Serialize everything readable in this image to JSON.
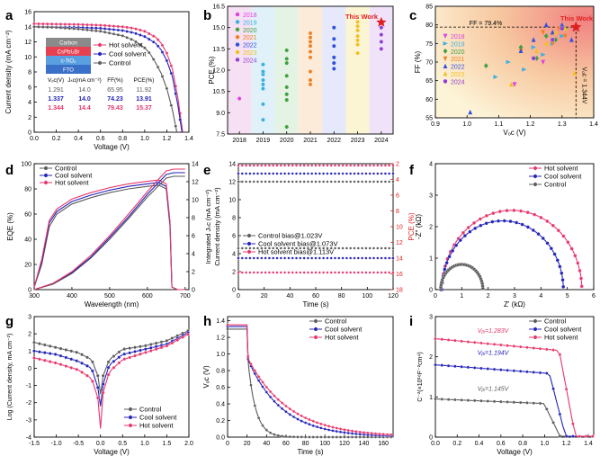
{
  "panels": {
    "a": {
      "letter": "a",
      "xlabel": "Voltage (V)",
      "ylabel": "Current density (mA cm⁻²)",
      "xticks": [
        "0.0",
        "0.2",
        "0.4",
        "0.6",
        "0.8",
        "1.0",
        "1.2",
        "1.4"
      ],
      "yticks": [
        "0",
        "2",
        "4",
        "6",
        "8",
        "10",
        "12",
        "14",
        "16"
      ],
      "stack": [
        "Carbon",
        "CsPbI₂Br",
        "c-TiO₂",
        "FTO"
      ],
      "legend": [
        "Hot solvent",
        "Cool solvent",
        "Control"
      ],
      "table_header": [
        "Vₒᴄ(V)",
        "Jₛᴄ(mA cm⁻²)",
        "FF(%)",
        "PCE(%)"
      ],
      "table_rows": [
        [
          "1.291",
          "14.0",
          "65.95",
          "11.92"
        ],
        [
          "1.337",
          "14.0",
          "74.23",
          "13.91"
        ],
        [
          "1.344",
          "14.4",
          "79.43",
          "15.37"
        ]
      ]
    },
    "b": {
      "letter": "b",
      "ylabel": "PCE (%)",
      "xticks": [
        "2018",
        "2019",
        "2020",
        "2021",
        "2022",
        "2023",
        "2024"
      ],
      "yticks": [
        "7.5",
        "9.0",
        "10.5",
        "12.0",
        "13.5",
        "15.0",
        "16.5"
      ],
      "legend": [
        "2018",
        "2019",
        "2020",
        "2021",
        "2022",
        "2023",
        "2024"
      ],
      "annotation": "This Work"
    },
    "c": {
      "letter": "c",
      "xlabel": "Vₒᴄ (V)",
      "ylabel": "FF (%)",
      "xticks": [
        "0.9",
        "1.0",
        "1.1",
        "1.2",
        "1.3",
        "1.4"
      ],
      "yticks": [
        "55",
        "60",
        "65",
        "70",
        "75",
        "80",
        "85"
      ],
      "legend": [
        "2018",
        "2019",
        "2020",
        "2021",
        "2022",
        "2023",
        "2024"
      ],
      "ff_label": "FF = 79.4%",
      "voc_label": "Vₒᴄ = 1.344V",
      "annotation": "This Work"
    },
    "d": {
      "letter": "d",
      "xlabel": "Wavelength (nm)",
      "ylabel_left": "EQE (%)",
      "ylabel_right": "Integrated Jₛᴄ (mA cm⁻²)",
      "xticks": [
        "300",
        "400",
        "500",
        "600",
        "700"
      ],
      "yticks_left": [
        "0",
        "20",
        "40",
        "60",
        "80",
        "100"
      ],
      "yticks_right": [
        "0",
        "2",
        "4",
        "6",
        "8",
        "10",
        "12",
        "14"
      ],
      "legend": [
        "Control",
        "Cool solvent",
        "Hot solvent"
      ]
    },
    "e": {
      "letter": "e",
      "xlabel": "Time (s)",
      "ylabel_left": "Current density (mA cm⁻²)",
      "ylabel_right": "PCE (%)",
      "xticks": [
        "0",
        "20",
        "40",
        "60",
        "80",
        "100",
        "120"
      ],
      "yticks_left": [
        "0",
        "2",
        "4",
        "6",
        "8",
        "10",
        "12",
        "14"
      ],
      "yticks_right": [
        "2",
        "4",
        "6",
        "8",
        "10",
        "12",
        "14",
        "16",
        "18"
      ],
      "legend": [
        "Control bias@1.023V",
        "Cool solvent bias@1.073V",
        "Hot solvent bias@1.113V"
      ]
    },
    "f": {
      "letter": "f",
      "xlabel": "Z' (kΩ)",
      "ylabel": "-Z'' (kΩ)",
      "xticks": [
        "0",
        "1",
        "2",
        "3",
        "4",
        "5",
        "6"
      ],
      "yticks": [
        "0",
        "1",
        "2",
        "3",
        "4"
      ],
      "legend": [
        "Hot solvent",
        "Cool solvent",
        "Control"
      ]
    },
    "g": {
      "letter": "g",
      "xlabel": "Voltage (V)",
      "ylabel": "Log (Current density, mA cm⁻²)",
      "xticks": [
        "-1.5",
        "-1.0",
        "-0.5",
        "0.0",
        "0.5",
        "1.0",
        "1.5",
        "2.0"
      ],
      "yticks": [
        "-4",
        "-3",
        "-2",
        "-1",
        "0",
        "1",
        "2",
        "3"
      ],
      "legend": [
        "Control",
        "Cool solvent",
        "Hot solvent"
      ]
    },
    "h": {
      "letter": "h",
      "xlabel": "Time (s)",
      "ylabel": "Vₒᴄ (V)",
      "xticks": [
        "0",
        "20",
        "40",
        "60",
        "80",
        "100",
        "120",
        "140",
        "160"
      ],
      "yticks": [
        "0.0",
        "0.2",
        "0.4",
        "0.6",
        "0.8",
        "1.0",
        "1.2",
        "1.4"
      ],
      "legend": [
        "Control",
        "Cool solvent",
        "Hot solvent"
      ]
    },
    "i": {
      "letter": "i",
      "xlabel": "Voltage (V)",
      "ylabel": "C⁻²(×10¹⁶F⁻²cm⁴)",
      "xticks": [
        "0.0",
        "0.2",
        "0.4",
        "0.6",
        "0.8",
        "1.0",
        "1.2",
        "1.4"
      ],
      "yticks": [
        "0",
        "1",
        "2",
        "3"
      ],
      "legend": [
        "Control",
        "Cool solvent",
        "Hot solvent"
      ],
      "vbi_labels": [
        "Vᵦᵢ=1.283V",
        "Vᵦᵢ=1.194V",
        "Vᵦᵢ=1.145V"
      ]
    }
  },
  "colors": {
    "hot": "#e8356a",
    "cool": "#2222b8",
    "control": "#5a5a5a",
    "y2018": "#e040e0",
    "y2019": "#3ab0e0",
    "y2020": "#40a040",
    "y2021": "#f08020",
    "y2022": "#3050e0",
    "y2023": "#f0c020",
    "y2024": "#9040d0",
    "star": "#e02020"
  },
  "chart_data": [
    {
      "panel": "a",
      "type": "line",
      "xlim": [
        0,
        1.4
      ],
      "ylim": [
        0,
        16
      ],
      "series": [
        {
          "name": "Hot solvent",
          "x": [
            0,
            0.2,
            0.4,
            0.6,
            0.8,
            0.9,
            1.0,
            1.1,
            1.15,
            1.2,
            1.25,
            1.3,
            1.344
          ],
          "y": [
            14.4,
            14.35,
            14.3,
            14.2,
            14.0,
            13.8,
            13.4,
            12.6,
            11.8,
            10.5,
            8.4,
            4.6,
            0
          ]
        },
        {
          "name": "Cool solvent",
          "x": [
            0,
            0.2,
            0.4,
            0.6,
            0.8,
            0.9,
            1.0,
            1.1,
            1.15,
            1.2,
            1.25,
            1.3,
            1.337
          ],
          "y": [
            14.0,
            13.95,
            13.9,
            13.8,
            13.5,
            13.2,
            12.7,
            11.8,
            10.9,
            9.5,
            7.4,
            3.6,
            0
          ]
        },
        {
          "name": "Control",
          "x": [
            0,
            0.2,
            0.4,
            0.6,
            0.8,
            0.9,
            1.0,
            1.05,
            1.1,
            1.15,
            1.2,
            1.25,
            1.291
          ],
          "y": [
            14.0,
            13.9,
            13.7,
            13.4,
            12.8,
            12.2,
            11.2,
            10.4,
            9.2,
            7.8,
            5.8,
            3.0,
            0
          ]
        }
      ]
    },
    {
      "panel": "b",
      "type": "scatter",
      "xlim": [
        2017.5,
        2024.5
      ],
      "ylim": [
        7.5,
        16.5
      ],
      "series": [
        {
          "name": "2018",
          "x": [
            2018
          ],
          "y": [
            10.0
          ]
        },
        {
          "name": "2019",
          "x": [
            2019,
            2019,
            2019,
            2019,
            2019,
            2019,
            2019,
            2019
          ],
          "y": [
            8.5,
            9.6,
            10.7,
            11.0,
            11.3,
            11.7,
            11.9,
            12.4
          ]
        },
        {
          "name": "2020",
          "x": [
            2020,
            2020,
            2020,
            2020,
            2020,
            2020,
            2020,
            2020
          ],
          "y": [
            8.0,
            9.9,
            10.3,
            10.8,
            11.6,
            12.5,
            12.8,
            13.4
          ]
        },
        {
          "name": "2021",
          "x": [
            2021,
            2021,
            2021,
            2021,
            2021,
            2021,
            2021,
            2021,
            2021
          ],
          "y": [
            11.0,
            11.3,
            11.9,
            12.9,
            13.3,
            13.7,
            14.0,
            14.3,
            14.6
          ]
        },
        {
          "name": "2022",
          "x": [
            2022,
            2022,
            2022,
            2022,
            2022,
            2022
          ],
          "y": [
            12.1,
            12.5,
            12.9,
            13.7,
            14.2,
            15.0
          ]
        },
        {
          "name": "2023",
          "x": [
            2023,
            2023,
            2023,
            2023,
            2023,
            2023,
            2023
          ],
          "y": [
            13.2,
            13.8,
            14.1,
            14.4,
            14.8,
            15.1,
            15.4
          ]
        },
        {
          "name": "2024",
          "x": [
            2024,
            2024,
            2024,
            2024
          ],
          "y": [
            13.5,
            14.0,
            14.5,
            15.0
          ]
        },
        {
          "name": "This Work",
          "x": [
            2024
          ],
          "y": [
            15.37
          ]
        }
      ]
    },
    {
      "panel": "c",
      "type": "scatter",
      "xlim": [
        0.9,
        1.4
      ],
      "ylim": [
        55,
        85
      ],
      "series": [
        {
          "name": "2018",
          "x": [
            1.15,
            1.24
          ],
          "y": [
            64,
            70
          ]
        },
        {
          "name": "2019",
          "x": [
            1.09,
            1.13,
            1.18,
            1.21,
            1.24,
            1.27,
            1.3
          ],
          "y": [
            66,
            70,
            68,
            74,
            72,
            75,
            77
          ]
        },
        {
          "name": "2020",
          "x": [
            1.06,
            1.17,
            1.22,
            1.25,
            1.28,
            1.31
          ],
          "y": [
            69,
            74,
            71,
            77,
            76,
            79
          ]
        },
        {
          "name": "2021",
          "x": [
            1.17,
            1.21,
            1.24,
            1.27,
            1.29,
            1.31
          ],
          "y": [
            73,
            71,
            78,
            75,
            79,
            77
          ]
        },
        {
          "name": "2022",
          "x": [
            1.01,
            1.17,
            1.21,
            1.25,
            1.27,
            1.3,
            1.33
          ],
          "y": [
            56.5,
            73,
            76,
            80,
            78,
            80,
            76
          ]
        },
        {
          "name": "2023",
          "x": [
            1.14,
            1.22,
            1.25,
            1.28,
            1.31,
            1.34
          ],
          "y": [
            64,
            73,
            75,
            78,
            79,
            67
          ]
        },
        {
          "name": "2024",
          "x": [
            1.21,
            1.27,
            1.3
          ],
          "y": [
            71,
            76,
            79
          ]
        },
        {
          "name": "This Work",
          "x": [
            1.344
          ],
          "y": [
            79.4
          ]
        }
      ]
    },
    {
      "panel": "d",
      "type": "line",
      "xlim": [
        300,
        710
      ],
      "ylim": [
        0,
        100
      ],
      "y2lim": [
        0,
        14
      ],
      "series": [
        {
          "name": "Control EQE",
          "x": [
            300,
            320,
            340,
            360,
            400,
            450,
            500,
            550,
            600,
            630,
            650,
            660,
            665,
            680,
            700
          ],
          "y": [
            2,
            20,
            50,
            60,
            68,
            73,
            77,
            80,
            82,
            83,
            80,
            50,
            2,
            0,
            0
          ]
        },
        {
          "name": "Cool solvent EQE",
          "x": [
            300,
            320,
            340,
            360,
            400,
            450,
            500,
            550,
            600,
            630,
            650,
            660,
            665,
            680,
            700
          ],
          "y": [
            2,
            22,
            53,
            62,
            70,
            75,
            79,
            82,
            84,
            85,
            82,
            52,
            2,
            0,
            0
          ]
        },
        {
          "name": "Hot solvent EQE",
          "x": [
            300,
            320,
            340,
            360,
            400,
            450,
            500,
            550,
            600,
            630,
            650,
            660,
            665,
            680,
            700
          ],
          "y": [
            2,
            24,
            55,
            64,
            72,
            77,
            81,
            84,
            86,
            87,
            84,
            54,
            2,
            0,
            0
          ]
        },
        {
          "name": "Control Jsc",
          "x": [
            300,
            350,
            400,
            450,
            500,
            550,
            600,
            650,
            670,
            700
          ],
          "y2": [
            0,
            0.6,
            1.8,
            3.5,
            5.6,
            7.9,
            10.3,
            12.4,
            12.6,
            12.6
          ]
        },
        {
          "name": "Cool solvent Jsc",
          "x": [
            300,
            350,
            400,
            450,
            500,
            550,
            600,
            650,
            670,
            700
          ],
          "y2": [
            0,
            0.7,
            1.9,
            3.6,
            5.8,
            8.1,
            10.6,
            12.8,
            13.0,
            13.0
          ]
        },
        {
          "name": "Hot solvent Jsc",
          "x": [
            300,
            350,
            400,
            450,
            500,
            550,
            600,
            650,
            670,
            700
          ],
          "y2": [
            0,
            0.7,
            2.0,
            3.8,
            6.0,
            8.4,
            10.9,
            13.2,
            13.4,
            13.4
          ]
        }
      ]
    },
    {
      "panel": "e",
      "type": "scatter",
      "xlim": [
        0,
        120
      ],
      "ylim": [
        0,
        14
      ],
      "y2lim": [
        18,
        2
      ],
      "series": [
        {
          "name": "Control bias@1.023V",
          "J": 12.0,
          "PCE": 11.9
        },
        {
          "name": "Cool solvent bias@1.073V",
          "J": 12.9,
          "PCE": 13.9
        },
        {
          "name": "Hot solvent bias@1.113V",
          "J": 13.8,
          "PCE": 15.3
        }
      ]
    },
    {
      "panel": "f",
      "type": "scatter",
      "xlim": [
        0,
        6
      ],
      "ylim": [
        0,
        4
      ],
      "series": [
        {
          "name": "Hot solvent",
          "center": 2.9,
          "radius": 2.65,
          "xmax": 5.55
        },
        {
          "name": "Cool solvent",
          "center": 2.55,
          "radius": 2.3,
          "xmax": 4.85
        },
        {
          "name": "Control",
          "center": 1.0,
          "radius": 0.8,
          "xmax": 1.8
        }
      ]
    },
    {
      "panel": "g",
      "type": "scatter",
      "xlim": [
        -1.5,
        2.0
      ],
      "ylim": [
        -4,
        3
      ],
      "series": [
        {
          "name": "Control",
          "x": [
            -1.5,
            -1.0,
            -0.5,
            -0.2,
            -0.05,
            0,
            0.05,
            0.2,
            0.5,
            1.0,
            1.5,
            2.0
          ],
          "y": [
            1.5,
            1.2,
            0.9,
            0.5,
            -0.5,
            -1.5,
            -0.5,
            0.5,
            1.1,
            1.3,
            1.6,
            2.2
          ]
        },
        {
          "name": "Cool solvent",
          "x": [
            -1.5,
            -1.0,
            -0.5,
            -0.2,
            -0.05,
            0,
            0.05,
            0.2,
            0.5,
            1.0,
            1.5,
            2.0
          ],
          "y": [
            1.0,
            0.8,
            0.4,
            0.0,
            -1.2,
            -2.2,
            -1.0,
            0.2,
            0.8,
            1.1,
            1.4,
            2.1
          ]
        },
        {
          "name": "Hot solvent",
          "x": [
            -1.5,
            -1.0,
            -0.5,
            -0.2,
            -0.05,
            0,
            0.05,
            0.2,
            0.5,
            1.0,
            1.5,
            2.0
          ],
          "y": [
            0.6,
            0.3,
            -0.1,
            -0.6,
            -1.8,
            -3.5,
            -1.5,
            -0.2,
            0.5,
            0.9,
            1.3,
            2.0
          ]
        }
      ]
    },
    {
      "panel": "h",
      "type": "scatter",
      "xlim": [
        0,
        170
      ],
      "ylim": [
        0,
        1.45
      ],
      "series": [
        {
          "name": "Control",
          "v0": 1.3,
          "tau": 8
        },
        {
          "name": "Cool solvent",
          "v0": 1.33,
          "tau": 35
        },
        {
          "name": "Hot solvent",
          "v0": 1.35,
          "tau": 42
        }
      ]
    },
    {
      "panel": "i",
      "type": "scatter",
      "xlim": [
        0,
        1.45
      ],
      "ylim": [
        0,
        3
      ],
      "series": [
        {
          "name": "Control",
          "plateau": 0.95,
          "vbi": 1.145
        },
        {
          "name": "Cool solvent",
          "plateau": 1.8,
          "vbi": 1.194
        },
        {
          "name": "Hot solvent",
          "plateau": 2.45,
          "vbi": 1.283
        }
      ]
    }
  ]
}
